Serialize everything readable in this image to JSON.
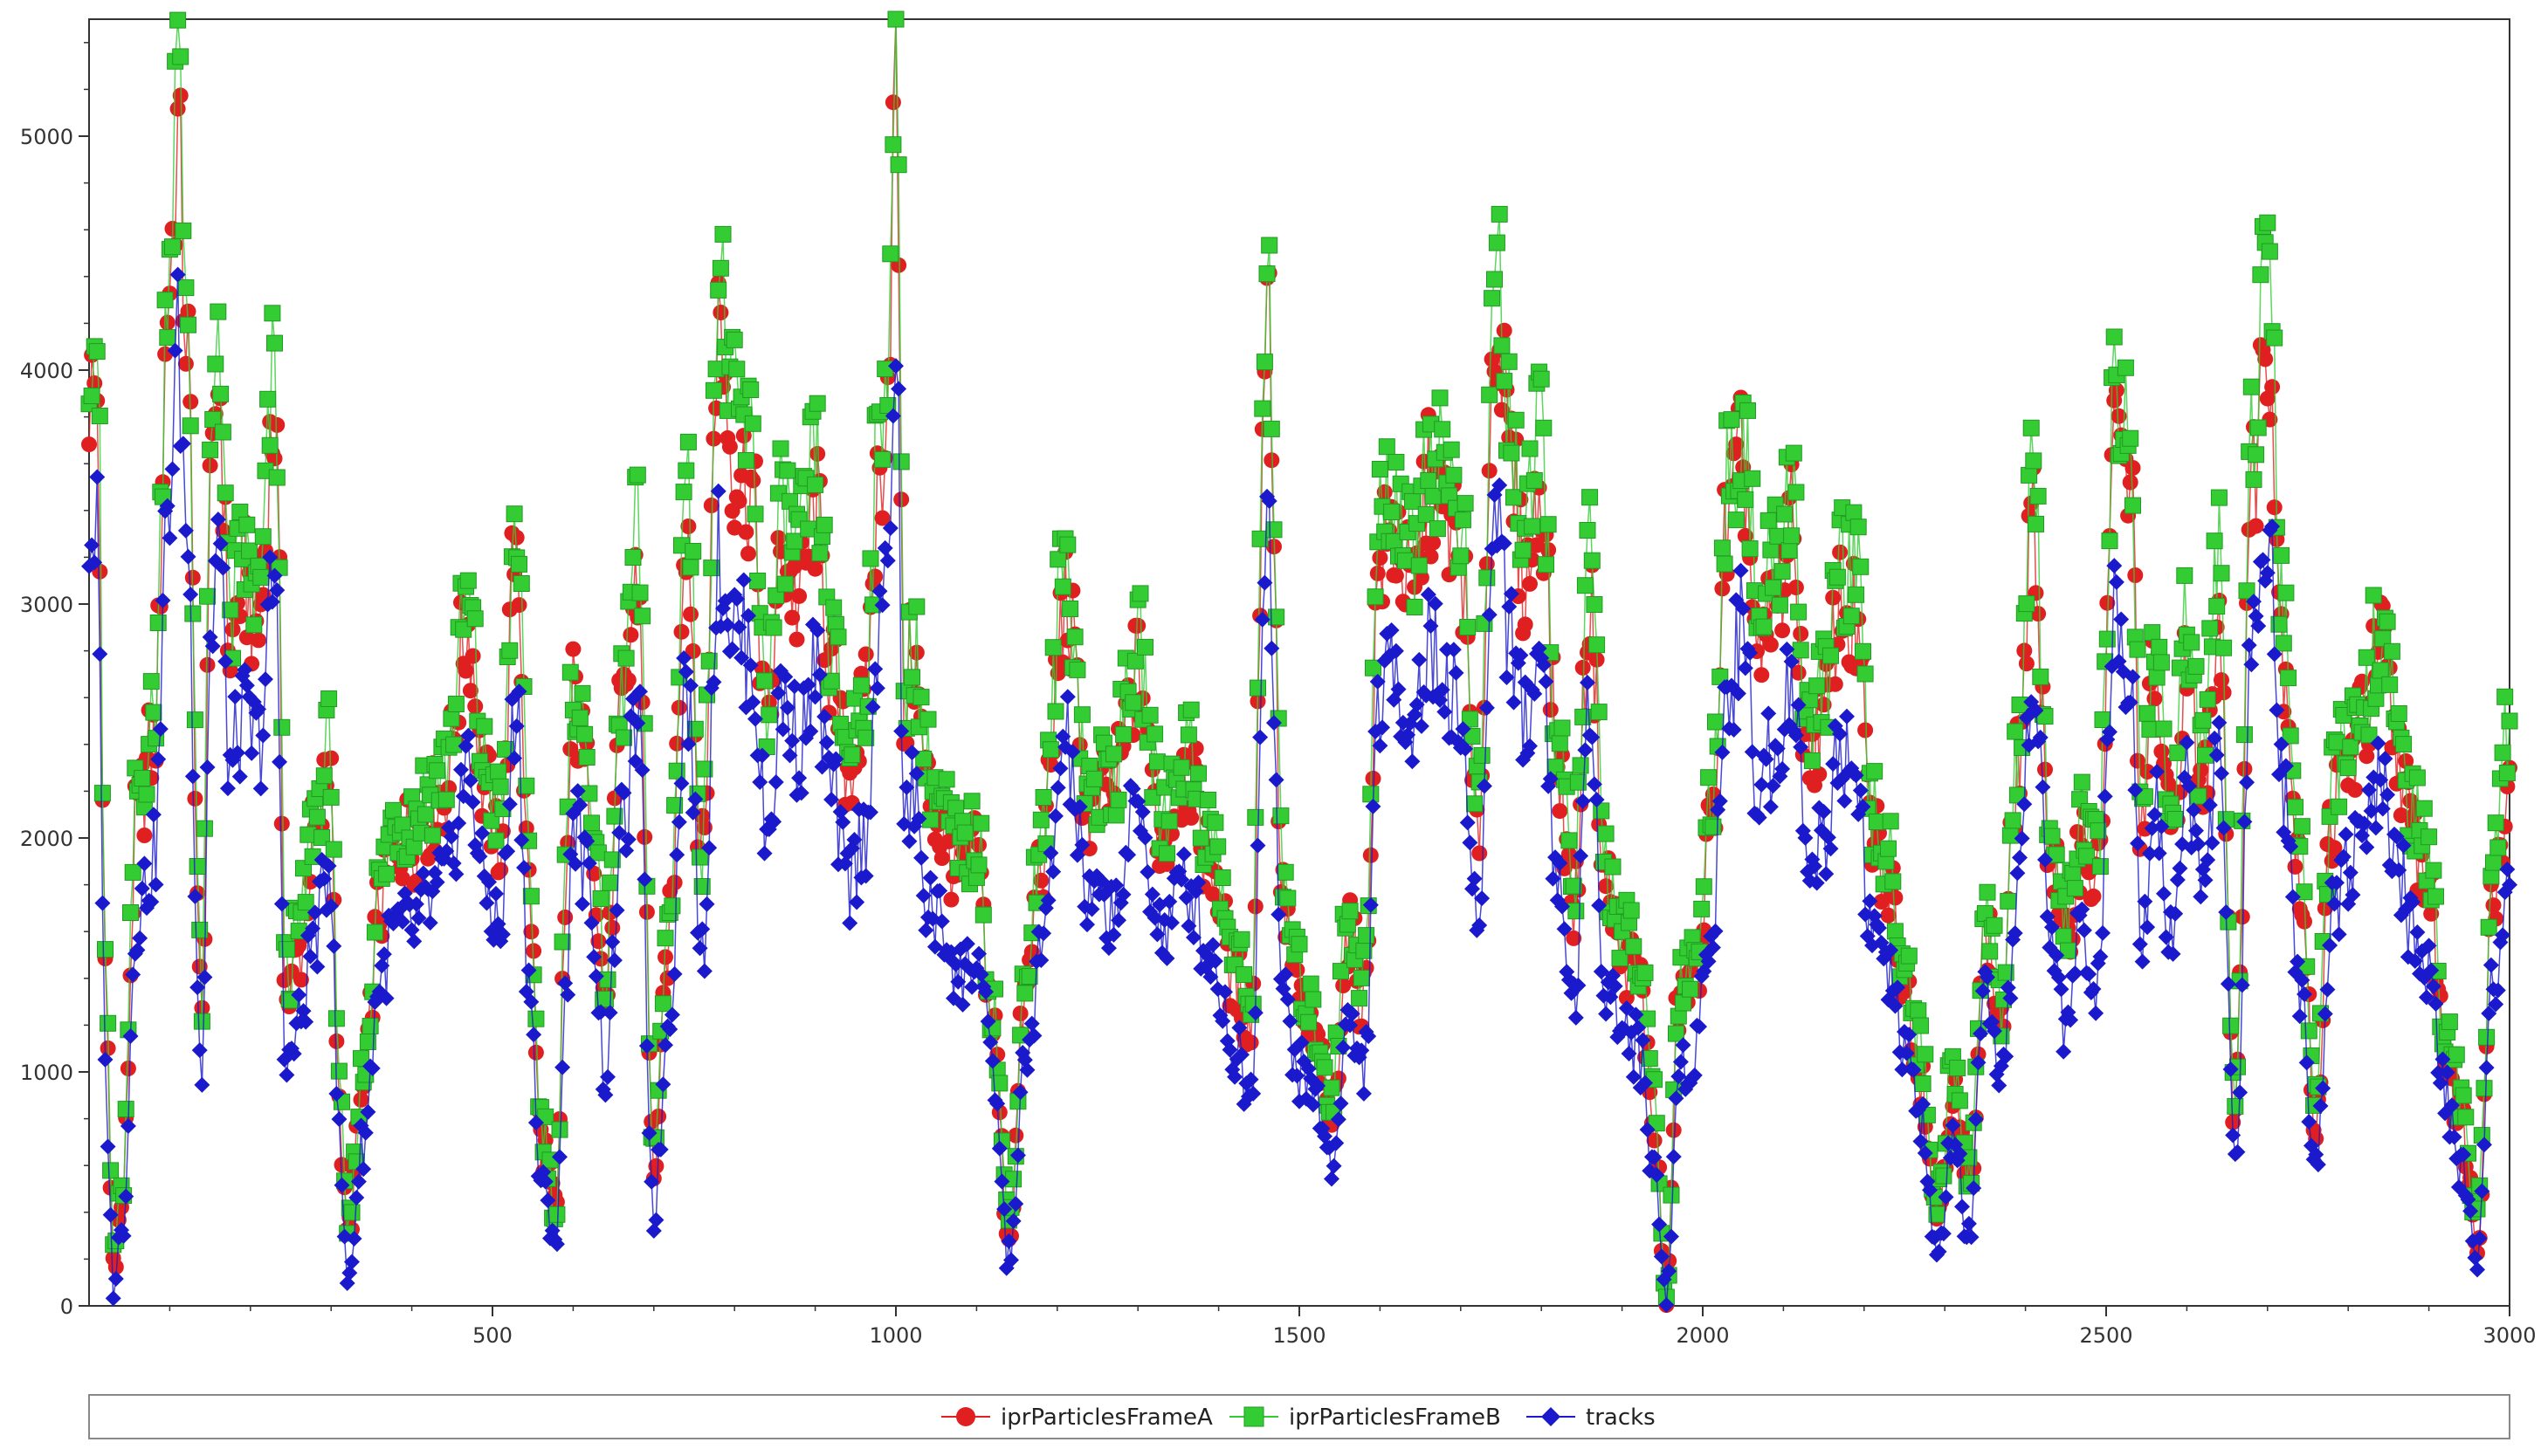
{
  "chart_data": {
    "type": "line",
    "title": "",
    "xlabel": "",
    "ylabel": "",
    "xlim": [
      0,
      3000
    ],
    "ylim": [
      0,
      5500
    ],
    "x_ticks": [
      500,
      1000,
      1500,
      2000,
      2500,
      3000
    ],
    "y_ticks": [
      0,
      1000,
      2000,
      3000,
      4000,
      5000
    ],
    "x_tick_labels": [
      "500",
      "1000",
      "1500",
      "2000",
      "2500",
      "3000"
    ],
    "y_tick_labels": [
      "0",
      "1000",
      "2000",
      "3000",
      "4000",
      "5000"
    ],
    "grid": false,
    "legend_position": "bottom",
    "x_anchor": [
      0,
      10,
      20,
      30,
      40,
      60,
      80,
      100,
      110,
      120,
      140,
      150,
      160,
      175,
      190,
      210,
      230,
      245,
      260,
      280,
      300,
      310,
      320,
      340,
      360,
      380,
      400,
      420,
      440,
      470,
      490,
      510,
      530,
      545,
      560,
      580,
      590,
      600,
      620,
      640,
      660,
      680,
      700,
      720,
      740,
      760,
      780,
      800,
      820,
      840,
      860,
      880,
      900,
      920,
      940,
      960,
      980,
      990,
      1000,
      1010,
      1020,
      1040,
      1060,
      1080,
      1100,
      1120,
      1140,
      1160,
      1180,
      1210,
      1240,
      1270,
      1300,
      1330,
      1360,
      1390,
      1420,
      1440,
      1460,
      1480,
      1500,
      1520,
      1540,
      1560,
      1580,
      1600,
      1620,
      1640,
      1660,
      1680,
      1700,
      1720,
      1745,
      1760,
      1780,
      1800,
      1820,
      1840,
      1860,
      1880,
      1900,
      1920,
      1940,
      1955,
      1970,
      1990,
      2010,
      2030,
      2050,
      2070,
      2090,
      2110,
      2130,
      2150,
      2170,
      2190,
      2210,
      2230,
      2250,
      2270,
      2290,
      2310,
      2330,
      2350,
      2370,
      2390,
      2410,
      2430,
      2450,
      2470,
      2490,
      2510,
      2530,
      2545,
      2560,
      2580,
      2600,
      2620,
      2640,
      2660,
      2680,
      2700,
      2720,
      2740,
      2760,
      2780,
      2800,
      2820,
      2840,
      2860,
      2880,
      2900,
      2920,
      2940,
      2960,
      2980,
      3000
    ],
    "series": [
      {
        "name": "iprParticlesFrameA",
        "color": "#e02020",
        "marker": "circle",
        "values": [
          3900,
          3900,
          1400,
          200,
          400,
          2100,
          2400,
          4400,
          5000,
          4200,
          1200,
          3300,
          4000,
          2800,
          3100,
          2900,
          3800,
          1300,
          1500,
          2000,
          2300,
          800,
          300,
          900,
          1700,
          2000,
          2000,
          2100,
          2200,
          2900,
          2200,
          2000,
          3300,
          1800,
          700,
          400,
          1700,
          2600,
          2200,
          1300,
          2500,
          3100,
          600,
          1600,
          3400,
          1900,
          4200,
          3600,
          3500,
          2500,
          3200,
          3000,
          3400,
          2700,
          2300,
          2500,
          3500,
          4000,
          5300,
          2500,
          2800,
          2200,
          2000,
          1800,
          1900,
          1200,
          300,
          1300,
          1900,
          3000,
          2100,
          2200,
          2700,
          2000,
          2300,
          1900,
          1400,
          1200,
          4400,
          1700,
          1300,
          1100,
          800,
          1600,
          1300,
          3200,
          3300,
          3000,
          3500,
          3400,
          3200,
          2000,
          4300,
          3600,
          3100,
          3500,
          2300,
          1700,
          3000,
          1800,
          1500,
          1400,
          800,
          0,
          1300,
          1400,
          2000,
          3300,
          3600,
          2700,
          3000,
          3300,
          2400,
          2500,
          3000,
          2900,
          2000,
          1800,
          1400,
          1000,
          400,
          900,
          500,
          1600,
          1200,
          2300,
          3300,
          2000,
          1500,
          2000,
          1800,
          3700,
          3500,
          2000,
          2700,
          2000,
          2700,
          2200,
          3000,
          800,
          3500,
          4200,
          2800,
          1800,
          800,
          2100,
          2300,
          2500,
          2800,
          2400,
          2000,
          1800,
          1100,
          800,
          300,
          1800,
          2300
        ]
      },
      {
        "name": "iprParticlesFrameB",
        "color": "#33cc33",
        "marker": "square",
        "values": [
          4200,
          4200,
          1500,
          250,
          450,
          2200,
          2500,
          4600,
          5300,
          4400,
          1300,
          3500,
          4300,
          2900,
          3200,
          3000,
          4000,
          1400,
          1600,
          2100,
          2400,
          900,
          300,
          1000,
          1800,
          2100,
          2100,
          2200,
          2300,
          3000,
          2300,
          2100,
          3400,
          1900,
          800,
          400,
          1800,
          2700,
          2300,
          1400,
          2600,
          3300,
          700,
          1700,
          3600,
          2000,
          4400,
          3800,
          3700,
          2600,
          3400,
          3200,
          3600,
          2800,
          2400,
          2600,
          3700,
          4200,
          5500,
          2600,
          2900,
          2300,
          2100,
          1900,
          2000,
          1300,
          350,
          1400,
          2000,
          3200,
          2200,
          2300,
          2800,
          2100,
          2400,
          2000,
          1500,
          1300,
          4500,
          1800,
          1400,
          1200,
          900,
          1700,
          1400,
          3400,
          3500,
          3200,
          3700,
          3600,
          3400,
          2100,
          4500,
          3800,
          3300,
          3700,
          2400,
          1800,
          3200,
          1900,
          1600,
          1500,
          900,
          0,
          1400,
          1500,
          2100,
          3500,
          3800,
          2900,
          3200,
          3500,
          2500,
          2600,
          3200,
          3100,
          2100,
          1900,
          1500,
          1100,
          450,
          1000,
          550,
          1700,
          1300,
          2400,
          3500,
          2100,
          1600,
          2100,
          1900,
          3900,
          3700,
          2100,
          2900,
          2100,
          2900,
          2300,
          3200,
          900,
          3700,
          4400,
          2900,
          1900,
          900,
          2200,
          2400,
          2600,
          2900,
          2500,
          2100,
          1900,
          1200,
          900,
          350,
          1900,
          2500
        ]
      },
      {
        "name": "tracks",
        "color": "#1a1acc",
        "marker": "diamond",
        "values": [
          3300,
          3300,
          1000,
          100,
          300,
          1700,
          1900,
          3500,
          4100,
          3400,
          1000,
          2800,
          3300,
          2300,
          2500,
          2400,
          3100,
          1000,
          1200,
          1600,
          1900,
          700,
          100,
          700,
          1400,
          1600,
          1600,
          1700,
          1800,
          2300,
          1800,
          1600,
          2600,
          1400,
          500,
          300,
          1300,
          2100,
          1800,
          1000,
          2000,
          2500,
          400,
          1300,
          2700,
          1500,
          3200,
          2900,
          2800,
          2000,
          2600,
          2400,
          2700,
          2200,
          1800,
          2000,
          2800,
          3200,
          4200,
          2000,
          2200,
          1700,
          1600,
          1400,
          1500,
          1000,
          200,
          1000,
          1500,
          2400,
          1700,
          1700,
          2100,
          1600,
          1800,
          1500,
          1100,
          900,
          3500,
          1300,
          1000,
          900,
          600,
          1200,
          1000,
          2600,
          2700,
          2500,
          2800,
          2700,
          2500,
          1600,
          3500,
          2900,
          2500,
          2800,
          1800,
          1300,
          2500,
          1400,
          1200,
          1100,
          600,
          0,
          1000,
          1100,
          1600,
          2600,
          2900,
          2200,
          2400,
          2700,
          1900,
          2000,
          2400,
          2300,
          1600,
          1400,
          1100,
          800,
          200,
          700,
          300,
          1300,
          900,
          1800,
          2700,
          1600,
          1200,
          1600,
          1400,
          2900,
          2800,
          1600,
          2200,
          1600,
          2200,
          1800,
          2400,
          600,
          2800,
          3400,
          2200,
          1400,
          600,
          1700,
          1900,
          2000,
          2200,
          1900,
          1600,
          1400,
          900,
          600,
          200,
          1400,
          1800
        ]
      }
    ]
  }
}
